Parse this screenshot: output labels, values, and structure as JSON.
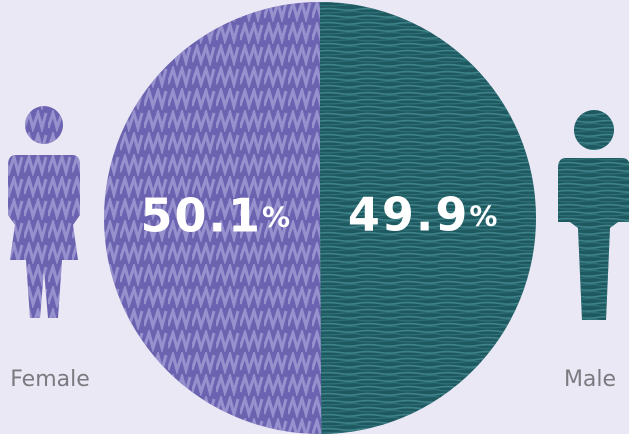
{
  "chart_data": {
    "type": "pie",
    "categories": [
      "Female",
      "Male"
    ],
    "values": [
      50.1,
      49.9
    ],
    "value_labels": [
      "50.1%",
      "49.9%"
    ],
    "colors": [
      "#6b63b0",
      "#1e5960"
    ]
  }
}
